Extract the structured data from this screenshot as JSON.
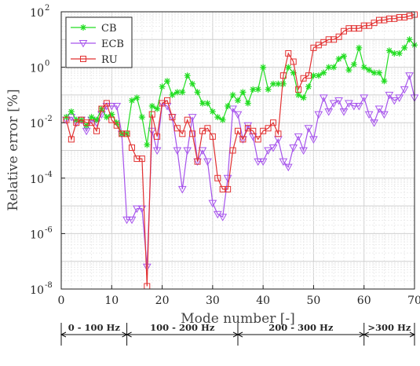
{
  "chart_data": {
    "type": "line",
    "title": "",
    "xlabel": "Mode number [-]",
    "ylabel": "Relative error [%]",
    "xlim": [
      0,
      70
    ],
    "ylim_log10": [
      -8,
      2
    ],
    "yscale": "log",
    "grid": true,
    "legend_position": "top-left",
    "x_ticks": [
      "0",
      "10",
      "20",
      "30",
      "40",
      "50",
      "60",
      "70"
    ],
    "y_ticks": [
      {
        "base": "10",
        "exp": "2"
      },
      {
        "base": "10",
        "exp": "0"
      },
      {
        "base": "10",
        "exp": "-2"
      },
      {
        "base": "10",
        "exp": "-4"
      },
      {
        "base": "10",
        "exp": "-6"
      },
      {
        "base": "10",
        "exp": "-8"
      }
    ],
    "x": [
      1,
      2,
      3,
      4,
      5,
      6,
      7,
      8,
      9,
      10,
      11,
      12,
      13,
      14,
      15,
      16,
      17,
      18,
      19,
      20,
      21,
      22,
      23,
      24,
      25,
      26,
      27,
      28,
      29,
      30,
      31,
      32,
      33,
      34,
      35,
      36,
      37,
      38,
      39,
      40,
      41,
      42,
      43,
      44,
      45,
      46,
      47,
      48,
      49,
      50,
      51,
      52,
      53,
      54,
      55,
      56,
      57,
      58,
      59,
      60,
      61,
      62,
      63,
      64,
      65,
      66,
      67,
      68,
      69,
      70
    ],
    "series": [
      {
        "name": "CB",
        "color": "#22dd22",
        "marker": "asterisk",
        "log10_values": [
          -1.8,
          -1.6,
          -1.9,
          -1.9,
          -2.1,
          -1.8,
          -1.9,
          -1.5,
          -1.8,
          -1.7,
          -2.0,
          -2.4,
          -2.4,
          -1.2,
          -1.1,
          -1.8,
          -2.8,
          -1.4,
          -1.5,
          -0.7,
          -0.5,
          -1.0,
          -0.9,
          -0.9,
          -0.3,
          -0.6,
          -0.9,
          -1.3,
          -1.3,
          -1.6,
          -1.8,
          -1.9,
          -1.4,
          -1.0,
          -1.2,
          -0.9,
          -1.3,
          -0.8,
          -0.8,
          0.0,
          -0.8,
          -0.6,
          -0.6,
          -0.6,
          0.0,
          -0.2,
          -1.0,
          -1.1,
          -0.7,
          -0.3,
          -0.3,
          -0.2,
          0.0,
          0.0,
          0.3,
          0.4,
          -0.1,
          0.1,
          0.7,
          0.0,
          -0.1,
          -0.2,
          -0.2,
          -0.5,
          0.6,
          0.5,
          0.5,
          0.7,
          1.0,
          0.8
        ]
      },
      {
        "name": "ECB",
        "color": "#a653ec",
        "marker": "triangle-down",
        "log10_values": [
          -1.9,
          -1.8,
          -2.0,
          -1.9,
          -2.3,
          -1.9,
          -2.0,
          -1.7,
          -1.4,
          -1.4,
          -1.4,
          -2.4,
          -5.5,
          -5.5,
          -5.1,
          -5.1,
          -7.2,
          -2.3,
          -3.0,
          -1.3,
          -1.4,
          -1.8,
          -3.0,
          -4.4,
          -3.0,
          -1.8,
          -3.4,
          -3.0,
          -3.4,
          -4.9,
          -5.3,
          -5.4,
          -4.0,
          -1.5,
          -1.7,
          -2.6,
          -2.1,
          -2.5,
          -3.4,
          -3.4,
          -3.0,
          -2.9,
          -2.6,
          -3.4,
          -3.6,
          -2.9,
          -2.5,
          -3.0,
          -2.2,
          -2.6,
          -1.7,
          -1.1,
          -1.6,
          -1.3,
          -1.2,
          -1.6,
          -1.3,
          -1.4,
          -1.4,
          -1.1,
          -1.7,
          -2.0,
          -1.5,
          -1.7,
          -1.0,
          -1.2,
          -1.1,
          -0.8,
          -0.3,
          -1.1
        ]
      },
      {
        "name": "RU",
        "color": "#e23030",
        "marker": "square",
        "log10_values": [
          -1.9,
          -2.6,
          -2.0,
          -1.9,
          -2.0,
          -2.0,
          -2.3,
          -1.5,
          -1.3,
          -1.9,
          -2.1,
          -2.4,
          -2.4,
          -2.9,
          -3.3,
          -3.3,
          -7.9,
          -1.7,
          -2.5,
          -1.3,
          -1.2,
          -1.8,
          -2.2,
          -2.4,
          -1.9,
          -2.4,
          -3.4,
          -2.3,
          -2.2,
          -2.5,
          -4.0,
          -4.4,
          -4.4,
          -3.0,
          -2.3,
          -2.6,
          -2.2,
          -2.3,
          -2.6,
          -2.3,
          -2.2,
          -2.0,
          -2.4,
          -0.3,
          0.5,
          0.2,
          -0.8,
          -0.4,
          -0.3,
          0.7,
          0.8,
          0.9,
          1.0,
          1.0,
          1.1,
          1.3,
          1.4,
          1.4,
          1.4,
          1.5,
          1.5,
          1.6,
          1.7,
          1.7,
          1.75,
          1.75,
          1.8,
          1.8,
          1.85,
          1.9
        ]
      }
    ],
    "bands": [
      {
        "label": "0 - 100 Hz",
        "x_start": 0,
        "x_end": 13
      },
      {
        "label": "100 - 200 Hz",
        "x_start": 13,
        "x_end": 35
      },
      {
        "label": "200 - 300 Hz",
        "x_start": 35,
        "x_end": 60
      },
      {
        "label": ">300 Hz",
        "x_start": 60,
        "x_end": 70
      }
    ]
  }
}
